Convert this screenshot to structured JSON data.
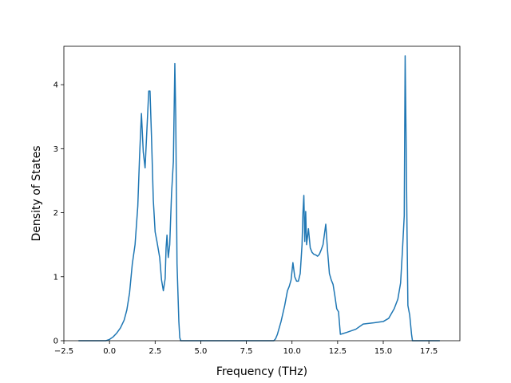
{
  "chart_data": {
    "type": "line",
    "title": "",
    "xlabel": "Frequency (THz)",
    "ylabel": "Density of States",
    "xlim": [
      -2.5,
      19.2
    ],
    "ylim": [
      0,
      4.6
    ],
    "grid": false,
    "x_ticks": [
      -2.5,
      0.0,
      2.5,
      5.0,
      7.5,
      10.0,
      12.5,
      15.0,
      17.5
    ],
    "x_tick_labels": [
      "−2.5",
      "0.0",
      "2.5",
      "5.0",
      "7.5",
      "10.0",
      "12.5",
      "15.0",
      "17.5"
    ],
    "y_ticks": [
      0,
      1,
      2,
      3,
      4
    ],
    "y_tick_labels": [
      "0",
      "1",
      "2",
      "3",
      "4"
    ],
    "line_color": "#1f77b4",
    "series": [
      {
        "x": [
          -1.7,
          -0.2,
          0.0,
          0.2,
          0.4,
          0.6,
          0.8,
          0.95,
          1.1,
          1.25,
          1.4,
          1.55,
          1.65,
          1.75,
          1.85,
          1.95,
          2.05,
          2.15,
          2.22,
          2.3,
          2.4,
          2.5,
          2.6,
          2.75,
          2.85,
          2.95,
          3.05,
          3.1,
          3.15,
          3.22,
          3.3,
          3.4,
          3.5,
          3.58,
          3.63,
          3.7,
          3.8,
          3.85,
          3.9,
          9.0,
          9.1,
          9.2,
          9.4,
          9.6,
          9.75,
          9.85,
          9.95,
          10.05,
          10.15,
          10.25,
          10.35,
          10.45,
          10.55,
          10.6,
          10.65,
          10.7,
          10.75,
          10.8,
          10.9,
          11.0,
          11.1,
          11.2,
          11.3,
          11.4,
          11.5,
          11.6,
          11.7,
          11.85,
          11.95,
          12.05,
          12.15,
          12.25,
          12.35,
          12.45,
          12.55,
          12.65,
          13.0,
          13.5,
          13.9,
          14.5,
          15.0,
          15.3,
          15.6,
          15.8,
          15.95,
          16.05,
          16.15,
          16.2,
          16.25,
          16.3,
          16.35,
          16.45,
          16.55,
          16.6,
          18.1
        ],
        "y": [
          0.0,
          0.0,
          0.02,
          0.06,
          0.12,
          0.2,
          0.32,
          0.48,
          0.75,
          1.2,
          1.5,
          2.1,
          2.9,
          3.55,
          2.95,
          2.7,
          3.3,
          3.9,
          3.9,
          3.2,
          2.2,
          1.7,
          1.55,
          1.3,
          0.95,
          0.78,
          0.97,
          1.45,
          1.65,
          1.3,
          1.5,
          2.3,
          2.8,
          4.33,
          3.5,
          1.2,
          0.3,
          0.05,
          0.0,
          0.0,
          0.03,
          0.1,
          0.3,
          0.55,
          0.78,
          0.85,
          0.95,
          1.22,
          1.0,
          0.93,
          0.93,
          1.05,
          1.5,
          2.0,
          2.27,
          1.55,
          2.02,
          1.5,
          1.75,
          1.45,
          1.38,
          1.35,
          1.34,
          1.32,
          1.35,
          1.42,
          1.5,
          1.82,
          1.4,
          1.05,
          0.95,
          0.88,
          0.7,
          0.5,
          0.45,
          0.1,
          0.13,
          0.18,
          0.26,
          0.28,
          0.3,
          0.35,
          0.5,
          0.65,
          0.9,
          1.4,
          1.95,
          4.45,
          3.2,
          1.8,
          0.55,
          0.4,
          0.1,
          0.0,
          0.0
        ]
      }
    ]
  }
}
